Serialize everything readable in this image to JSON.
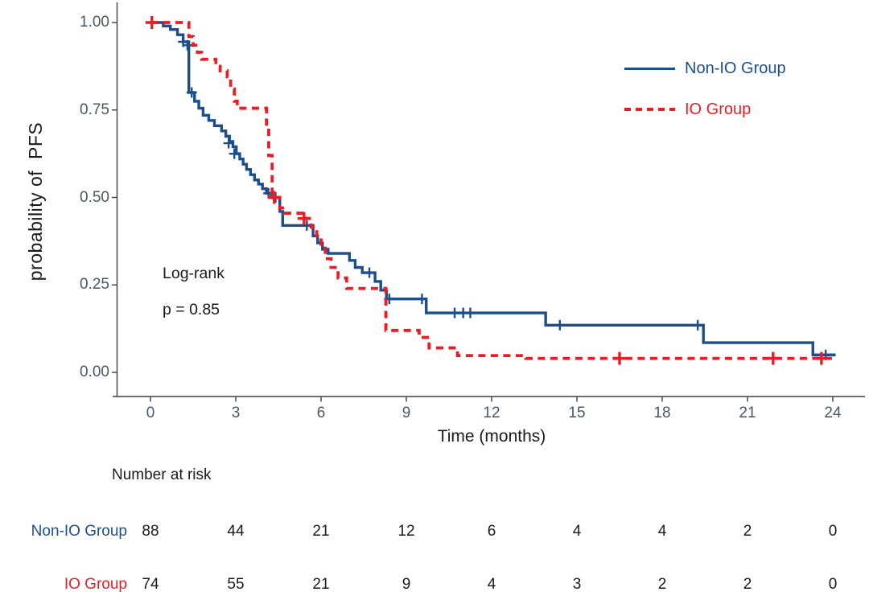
{
  "figure": {
    "ylabel": "probability of  PFS",
    "xlabel": "Time (months)",
    "annotation": {
      "line1": "Log-rank",
      "line2": "p = 0.85"
    },
    "colors": {
      "non_io": "#1c4e8c",
      "io": "#ec1c24",
      "axis_text": "#4d5763",
      "axis_line": "#3f3f3f",
      "text": "#1a1a1a"
    },
    "legend": [
      {
        "label": "Non-IO Group",
        "color": "#1c4e8c",
        "style": "solid"
      },
      {
        "label": "IO Group",
        "color": "#ec1c24",
        "style": "dashed"
      }
    ],
    "risk_table": {
      "title": "Number at risk",
      "columns": [
        0,
        3,
        6,
        9,
        12,
        15,
        18,
        21,
        24
      ],
      "rows": [
        {
          "label": "Non-IO Group",
          "color": "#1c4e8c",
          "values": [
            88,
            44,
            21,
            12,
            6,
            4,
            4,
            2,
            0
          ]
        },
        {
          "label": "IO Group",
          "color": "#ec1c24",
          "values": [
            74,
            55,
            21,
            9,
            4,
            3,
            2,
            2,
            0
          ]
        }
      ]
    }
  },
  "chart_data": {
    "type": "line",
    "subtype": "kaplan-meier-step",
    "title": "",
    "xlabel": "Time (months)",
    "ylabel": "probability of  PFS",
    "xlim": [
      0,
      24
    ],
    "xticks": [
      0,
      3,
      6,
      9,
      12,
      15,
      18,
      21,
      24
    ],
    "ylim": [
      0,
      1
    ],
    "yticks": [
      1.0,
      0.75,
      0.5,
      0.25,
      0.0
    ],
    "ytick_labels": [
      "1.00",
      "0.75",
      "0.50",
      "0.25",
      "0.00"
    ],
    "grid": false,
    "legend_position": "top-right",
    "annotation": "Log-rank p = 0.85",
    "series": [
      {
        "name": "Non-IO Group",
        "color": "#1c4e8c",
        "dashed": false,
        "steps": [
          [
            0,
            1.0
          ],
          [
            0.45,
            0.99
          ],
          [
            0.7,
            0.98
          ],
          [
            0.95,
            0.965
          ],
          [
            1.15,
            0.945
          ],
          [
            1.35,
            0.8
          ],
          [
            1.55,
            0.775
          ],
          [
            1.7,
            0.755
          ],
          [
            1.85,
            0.735
          ],
          [
            2.05,
            0.72
          ],
          [
            2.25,
            0.705
          ],
          [
            2.5,
            0.69
          ],
          [
            2.65,
            0.675
          ],
          [
            2.78,
            0.66
          ],
          [
            2.9,
            0.645
          ],
          [
            3.02,
            0.625
          ],
          [
            3.14,
            0.61
          ],
          [
            3.26,
            0.595
          ],
          [
            3.38,
            0.58
          ],
          [
            3.52,
            0.565
          ],
          [
            3.66,
            0.55
          ],
          [
            3.8,
            0.538
          ],
          [
            3.94,
            0.525
          ],
          [
            4.08,
            0.512
          ],
          [
            4.25,
            0.5
          ],
          [
            4.55,
            0.46
          ],
          [
            4.65,
            0.42
          ],
          [
            5.72,
            0.39
          ],
          [
            5.88,
            0.37
          ],
          [
            6.05,
            0.352
          ],
          [
            6.25,
            0.34
          ],
          [
            7.0,
            0.32
          ],
          [
            7.2,
            0.3
          ],
          [
            7.45,
            0.285
          ],
          [
            7.9,
            0.26
          ],
          [
            8.1,
            0.235
          ],
          [
            8.3,
            0.21
          ],
          [
            9.7,
            0.17
          ],
          [
            13.9,
            0.135
          ],
          [
            19.45,
            0.085
          ],
          [
            23.3,
            0.05
          ],
          [
            24.1,
            0.05
          ]
        ],
        "censors": [
          [
            1.15,
            0.945
          ],
          [
            1.3,
            0.935
          ],
          [
            1.45,
            0.8
          ],
          [
            2.75,
            0.655
          ],
          [
            2.95,
            0.625
          ],
          [
            4.15,
            0.512
          ],
          [
            4.4,
            0.5
          ],
          [
            5.5,
            0.42
          ],
          [
            7.7,
            0.285
          ],
          [
            8.4,
            0.21
          ],
          [
            9.55,
            0.21
          ],
          [
            10.7,
            0.17
          ],
          [
            11.0,
            0.17
          ],
          [
            11.25,
            0.17
          ],
          [
            14.4,
            0.135
          ],
          [
            19.25,
            0.135
          ],
          [
            23.75,
            0.05
          ]
        ]
      },
      {
        "name": "IO Group",
        "color": "#ec1c24",
        "dashed": true,
        "steps": [
          [
            0,
            1.0
          ],
          [
            1.35,
            0.96
          ],
          [
            1.5,
            0.935
          ],
          [
            1.65,
            0.915
          ],
          [
            1.8,
            0.895
          ],
          [
            2.3,
            0.875
          ],
          [
            2.45,
            0.862
          ],
          [
            2.7,
            0.845
          ],
          [
            2.82,
            0.81
          ],
          [
            2.95,
            0.775
          ],
          [
            3.05,
            0.755
          ],
          [
            4.08,
            0.7
          ],
          [
            4.16,
            0.62
          ],
          [
            4.28,
            0.5
          ],
          [
            4.55,
            0.47
          ],
          [
            4.7,
            0.455
          ],
          [
            5.45,
            0.44
          ],
          [
            5.65,
            0.415
          ],
          [
            5.85,
            0.385
          ],
          [
            6.0,
            0.355
          ],
          [
            6.15,
            0.325
          ],
          [
            6.35,
            0.3
          ],
          [
            6.6,
            0.27
          ],
          [
            6.9,
            0.24
          ],
          [
            8.28,
            0.12
          ],
          [
            9.45,
            0.1
          ],
          [
            9.8,
            0.07
          ],
          [
            10.8,
            0.048
          ],
          [
            13.2,
            0.04
          ],
          [
            24.0,
            0.04
          ]
        ],
        "censors": [
          [
            0.05,
            1.0
          ],
          [
            4.35,
            0.5
          ],
          [
            5.4,
            0.44
          ],
          [
            16.5,
            0.04
          ],
          [
            21.9,
            0.04
          ],
          [
            23.6,
            0.04
          ]
        ]
      }
    ],
    "number_at_risk": {
      "title": "Number at risk",
      "times": [
        0,
        3,
        6,
        9,
        12,
        15,
        18,
        21,
        24
      ],
      "groups": [
        {
          "name": "Non-IO Group",
          "values": [
            88,
            44,
            21,
            12,
            6,
            4,
            4,
            2,
            0
          ]
        },
        {
          "name": "IO Group",
          "values": [
            74,
            55,
            21,
            9,
            4,
            3,
            2,
            2,
            0
          ]
        }
      ]
    }
  }
}
